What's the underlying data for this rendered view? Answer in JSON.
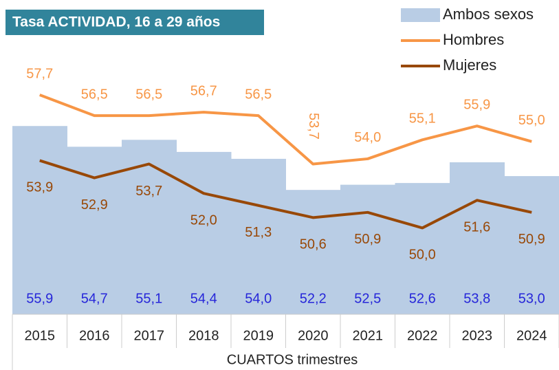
{
  "chart_data": {
    "type": "combo",
    "title": "Tasa ACTIVIDAD, 16 a 29 años",
    "xlabel": "CUARTOS trimestres",
    "categories": [
      "2015",
      "2016",
      "2017",
      "2018",
      "2019",
      "2020",
      "2021",
      "2022",
      "2023",
      "2024"
    ],
    "ylim": [
      45,
      62
    ],
    "legend": "top-right",
    "series": [
      {
        "name": "Ambos sexos",
        "type": "bar",
        "color": "#b9cde5",
        "label_color": "#2626d9",
        "values": [
          55.9,
          54.7,
          55.1,
          54.4,
          54.0,
          52.2,
          52.5,
          52.6,
          53.8,
          53.0
        ],
        "value_labels": [
          "55,9",
          "54,7",
          "55,1",
          "54,4",
          "54,0",
          "52,2",
          "52,5",
          "52,6",
          "53,8",
          "53,0"
        ]
      },
      {
        "name": "Hombres",
        "type": "line",
        "color": "#f79646",
        "values": [
          57.7,
          56.5,
          56.5,
          56.7,
          56.5,
          53.7,
          54.0,
          55.1,
          55.9,
          55.0
        ],
        "value_labels": [
          "57,7",
          "56,5",
          "56,5",
          "56,7",
          "56,5",
          "53,7",
          "54,0",
          "55,1",
          "55,9",
          "55,0"
        ]
      },
      {
        "name": "Mujeres",
        "type": "line",
        "color": "#984807",
        "values": [
          53.9,
          52.9,
          53.7,
          52.0,
          51.3,
          50.6,
          50.9,
          50.0,
          51.6,
          50.9
        ],
        "value_labels": [
          "53,9",
          "52,9",
          "53,7",
          "52,0",
          "51,3",
          "50,6",
          "50,9",
          "50,0",
          "51,6",
          "50,9"
        ]
      }
    ]
  }
}
